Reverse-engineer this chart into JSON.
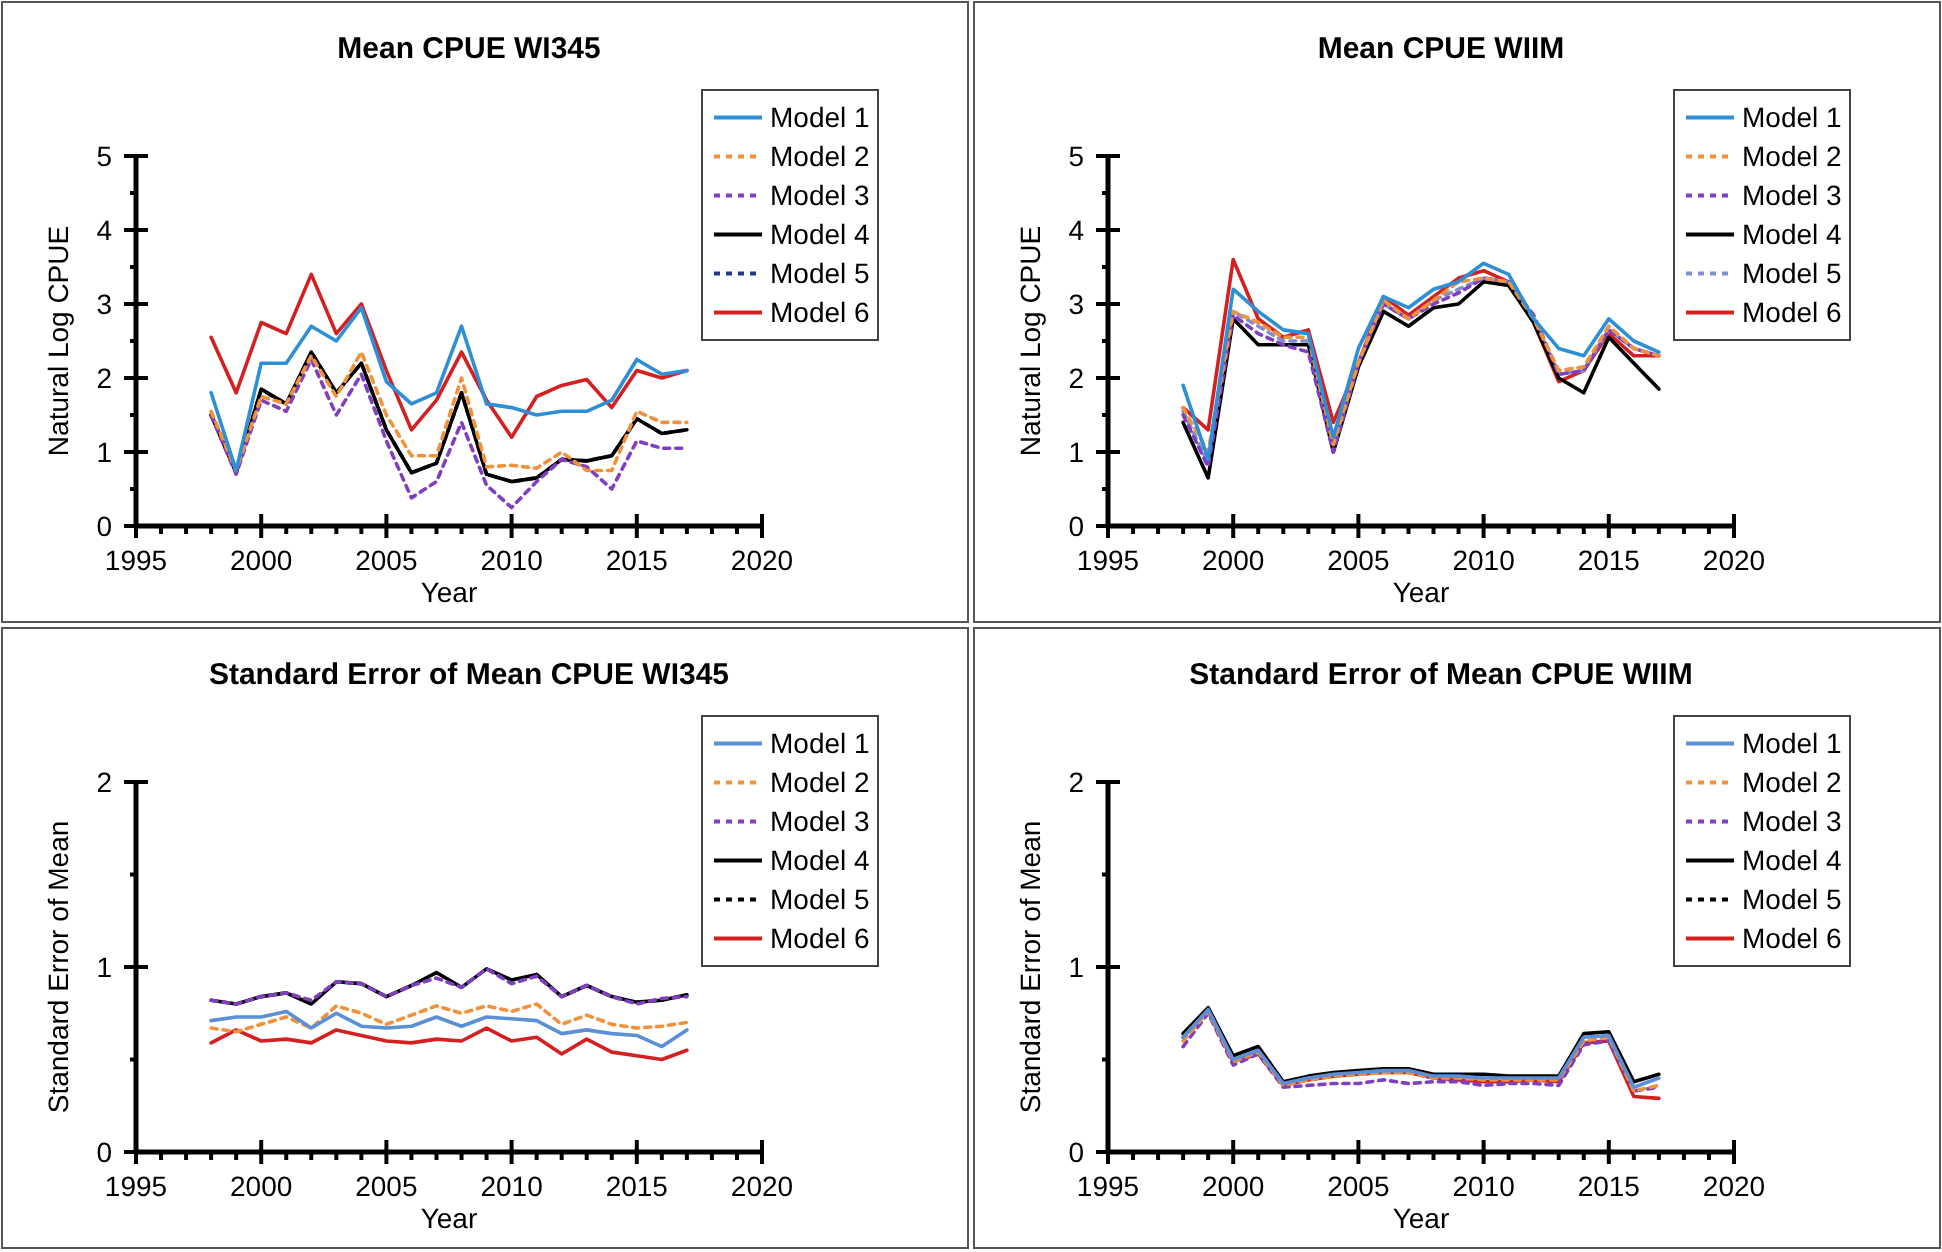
{
  "chart_data": [
    {
      "type": "line",
      "title": "Mean CPUE WI345",
      "xlabel": "Year",
      "ylabel": "Natural Log CPUE",
      "x": [
        1998,
        1999,
        2000,
        2001,
        2002,
        2003,
        2004,
        2005,
        2006,
        2007,
        2008,
        2009,
        2010,
        2011,
        2012,
        2013,
        2014,
        2015,
        2016,
        2017
      ],
      "xlim": [
        1995,
        2020
      ],
      "xticks": [
        1995,
        {
          "value": 1996,
          "label": null
        },
        {
          "value": 1997,
          "label": null
        },
        {
          "value": 1998,
          "label": null
        },
        {
          "value": 1999,
          "label": null
        },
        2000,
        {
          "value": 2001,
          "label": null
        },
        {
          "value": 2002,
          "label": null
        },
        {
          "value": 2003,
          "label": null
        },
        {
          "value": 2004,
          "label": null
        },
        2005,
        {
          "value": 2006,
          "label": null
        },
        {
          "value": 2007,
          "label": null
        },
        {
          "value": 2008,
          "label": null
        },
        {
          "value": 2009,
          "label": null
        },
        2010,
        {
          "value": 2011,
          "label": null
        },
        {
          "value": 2012,
          "label": null
        },
        {
          "value": 2013,
          "label": null
        },
        {
          "value": 2014,
          "label": null
        },
        2015,
        {
          "value": 2016,
          "label": null
        },
        {
          "value": 2017,
          "label": null
        },
        {
          "value": 2018,
          "label": null
        },
        {
          "value": 2019,
          "label": null
        },
        2020
      ],
      "ylim": [
        0,
        5
      ],
      "yticks": [
        0,
        {
          "value": 0.5,
          "label": null
        },
        1,
        {
          "value": 1.5,
          "label": null
        },
        2,
        {
          "value": 2.5,
          "label": null
        },
        3,
        {
          "value": 3.5,
          "label": null
        },
        4,
        {
          "value": 4.5,
          "label": null
        },
        5
      ],
      "grid": false,
      "legend": "top right",
      "marker": "none",
      "series": [
        {
          "name": "Model 1",
          "color": "#2e8fd6",
          "line_style": "solid",
          "values": [
            1.8,
            0.75,
            2.2,
            2.2,
            2.7,
            2.5,
            2.95,
            1.95,
            1.65,
            1.8,
            2.7,
            1.65,
            1.6,
            1.5,
            1.55,
            1.55,
            1.7,
            2.25,
            2.05,
            2.1
          ]
        },
        {
          "name": "Model 2",
          "color": "#f0923c",
          "line_style": "dashed",
          "values": [
            1.55,
            0.75,
            1.75,
            1.65,
            2.3,
            1.75,
            2.35,
            1.5,
            0.95,
            0.95,
            2.0,
            0.8,
            0.82,
            0.78,
            1.0,
            0.75,
            0.75,
            1.55,
            1.4,
            1.4
          ]
        },
        {
          "name": "Model 3",
          "color": "#7f3fbf",
          "line_style": "dashed",
          "values": [
            1.5,
            0.7,
            1.7,
            1.55,
            2.25,
            1.5,
            2.05,
            1.15,
            0.38,
            0.6,
            1.4,
            0.55,
            0.25,
            0.6,
            0.9,
            0.8,
            0.5,
            1.15,
            1.05,
            1.05
          ]
        },
        {
          "name": "Model 4",
          "color": "#000000",
          "line_style": "solid",
          "values": [
            1.5,
            0.72,
            1.85,
            1.65,
            2.35,
            1.8,
            2.2,
            1.3,
            0.72,
            0.85,
            1.8,
            0.7,
            0.6,
            0.65,
            0.9,
            0.88,
            0.95,
            1.45,
            1.25,
            1.3
          ]
        },
        {
          "name": "Model 5",
          "color": "#1f3a8c",
          "line_style": "dashed",
          "values": [
            1.5,
            0.72,
            1.84,
            1.65,
            2.35,
            1.8,
            2.2,
            1.3,
            0.72,
            0.85,
            1.8,
            0.7,
            0.6,
            0.65,
            0.9,
            0.88,
            0.95,
            1.45,
            1.25,
            1.3
          ]
        },
        {
          "name": "Model 6",
          "color": "#d42020",
          "line_style": "solid",
          "values": [
            2.55,
            1.8,
            2.75,
            2.6,
            3.4,
            2.6,
            3.0,
            2.1,
            1.3,
            1.7,
            2.35,
            1.7,
            1.2,
            1.75,
            1.9,
            1.98,
            1.6,
            2.1,
            2.0,
            2.1
          ]
        }
      ]
    },
    {
      "type": "line",
      "title": "Mean CPUE WIIM",
      "xlabel": "Year",
      "ylabel": "Natural Log CPUE",
      "x": [
        1998,
        1999,
        2000,
        2001,
        2002,
        2003,
        2004,
        2005,
        2006,
        2007,
        2008,
        2009,
        2010,
        2011,
        2012,
        2013,
        2014,
        2015,
        2016,
        2017
      ],
      "xlim": [
        1995,
        2020
      ],
      "xticks": [
        1995,
        {
          "value": 1996,
          "label": null
        },
        {
          "value": 1997,
          "label": null
        },
        {
          "value": 1998,
          "label": null
        },
        {
          "value": 1999,
          "label": null
        },
        2000,
        {
          "value": 2001,
          "label": null
        },
        {
          "value": 2002,
          "label": null
        },
        {
          "value": 2003,
          "label": null
        },
        {
          "value": 2004,
          "label": null
        },
        2005,
        {
          "value": 2006,
          "label": null
        },
        {
          "value": 2007,
          "label": null
        },
        {
          "value": 2008,
          "label": null
        },
        {
          "value": 2009,
          "label": null
        },
        2010,
        {
          "value": 2011,
          "label": null
        },
        {
          "value": 2012,
          "label": null
        },
        {
          "value": 2013,
          "label": null
        },
        {
          "value": 2014,
          "label": null
        },
        2015,
        {
          "value": 2016,
          "label": null
        },
        {
          "value": 2017,
          "label": null
        },
        {
          "value": 2018,
          "label": null
        },
        {
          "value": 2019,
          "label": null
        },
        2020
      ],
      "ylim": [
        0,
        5
      ],
      "yticks": [
        0,
        {
          "value": 0.5,
          "label": null
        },
        1,
        {
          "value": 1.5,
          "label": null
        },
        2,
        {
          "value": 2.5,
          "label": null
        },
        3,
        {
          "value": 3.5,
          "label": null
        },
        4,
        {
          "value": 4.5,
          "label": null
        },
        5
      ],
      "grid": false,
      "legend": "top right",
      "marker": "none",
      "series": [
        {
          "name": "Model 1",
          "color": "#2e8fd6",
          "line_style": "solid",
          "values": [
            1.9,
            0.9,
            3.2,
            2.9,
            2.65,
            2.6,
            1.2,
            2.4,
            3.1,
            2.95,
            3.2,
            3.3,
            3.55,
            3.4,
            2.8,
            2.4,
            2.3,
            2.8,
            2.5,
            2.35
          ]
        },
        {
          "name": "Model 2",
          "color": "#f0923c",
          "line_style": "dashed",
          "values": [
            1.6,
            1.0,
            2.9,
            2.75,
            2.55,
            2.55,
            1.1,
            2.2,
            3.05,
            2.8,
            3.05,
            3.3,
            3.35,
            3.3,
            2.8,
            2.1,
            2.15,
            2.7,
            2.4,
            2.3
          ]
        },
        {
          "name": "Model 3",
          "color": "#7f3fbf",
          "line_style": "dashed",
          "values": [
            1.5,
            0.8,
            2.85,
            2.6,
            2.45,
            2.35,
            1.0,
            2.2,
            3.0,
            2.8,
            3.0,
            3.15,
            3.35,
            3.3,
            2.85,
            2.05,
            2.1,
            2.65,
            2.4,
            2.3
          ]
        },
        {
          "name": "Model 4",
          "color": "#000000",
          "line_style": "solid",
          "values": [
            1.4,
            0.65,
            2.8,
            2.45,
            2.45,
            2.45,
            1.0,
            2.15,
            2.9,
            2.7,
            2.95,
            3.0,
            3.3,
            3.25,
            2.75,
            2.0,
            1.8,
            2.55,
            2.2,
            1.85
          ]
        },
        {
          "name": "Model 5",
          "color": "#7f8fd0",
          "line_style": "dashed",
          "values": [
            1.55,
            0.85,
            2.9,
            2.7,
            2.5,
            2.5,
            1.1,
            2.2,
            3.0,
            2.8,
            3.05,
            3.2,
            3.35,
            3.3,
            2.8,
            2.05,
            2.1,
            2.65,
            2.4,
            2.3
          ]
        },
        {
          "name": "Model 6",
          "color": "#d42020",
          "line_style": "solid",
          "values": [
            1.6,
            1.3,
            3.6,
            2.8,
            2.55,
            2.65,
            1.4,
            2.2,
            3.1,
            2.85,
            3.1,
            3.35,
            3.45,
            3.3,
            2.75,
            1.95,
            2.1,
            2.6,
            2.3,
            2.3
          ]
        }
      ]
    },
    {
      "type": "line",
      "title": "Standard Error of Mean CPUE WI345",
      "xlabel": "Year",
      "ylabel": "Standard Error of Mean",
      "x": [
        1998,
        1999,
        2000,
        2001,
        2002,
        2003,
        2004,
        2005,
        2006,
        2007,
        2008,
        2009,
        2010,
        2011,
        2012,
        2013,
        2014,
        2015,
        2016,
        2017
      ],
      "xlim": [
        1995,
        2020
      ],
      "xticks": [
        1995,
        {
          "value": 1996,
          "label": null
        },
        {
          "value": 1997,
          "label": null
        },
        {
          "value": 1998,
          "label": null
        },
        {
          "value": 1999,
          "label": null
        },
        2000,
        {
          "value": 2001,
          "label": null
        },
        {
          "value": 2002,
          "label": null
        },
        {
          "value": 2003,
          "label": null
        },
        {
          "value": 2004,
          "label": null
        },
        2005,
        {
          "value": 2006,
          "label": null
        },
        {
          "value": 2007,
          "label": null
        },
        {
          "value": 2008,
          "label": null
        },
        {
          "value": 2009,
          "label": null
        },
        2010,
        {
          "value": 2011,
          "label": null
        },
        {
          "value": 2012,
          "label": null
        },
        {
          "value": 2013,
          "label": null
        },
        {
          "value": 2014,
          "label": null
        },
        2015,
        {
          "value": 2016,
          "label": null
        },
        {
          "value": 2017,
          "label": null
        },
        {
          "value": 2018,
          "label": null
        },
        {
          "value": 2019,
          "label": null
        },
        2020
      ],
      "ylim": [
        0,
        2
      ],
      "yticks": [
        0,
        {
          "value": 0.5,
          "label": null
        },
        1,
        {
          "value": 1.5,
          "label": null
        },
        2
      ],
      "grid": false,
      "legend": "top right",
      "marker": "none",
      "series": [
        {
          "name": "Model 1",
          "color": "#5b8fd6",
          "line_style": "solid",
          "values": [
            0.71,
            0.73,
            0.73,
            0.76,
            0.67,
            0.75,
            0.68,
            0.67,
            0.68,
            0.73,
            0.68,
            0.73,
            0.72,
            0.71,
            0.64,
            0.66,
            0.64,
            0.63,
            0.57,
            0.66
          ]
        },
        {
          "name": "Model 2",
          "color": "#f0923c",
          "line_style": "dashed",
          "values": [
            0.67,
            0.65,
            0.69,
            0.73,
            0.67,
            0.79,
            0.75,
            0.69,
            0.74,
            0.79,
            0.75,
            0.79,
            0.76,
            0.8,
            0.69,
            0.74,
            0.69,
            0.67,
            0.68,
            0.7
          ]
        },
        {
          "name": "Model 3",
          "color": "#7f3fbf",
          "line_style": "dashed",
          "values": [
            0.82,
            0.8,
            0.84,
            0.86,
            0.82,
            0.92,
            0.91,
            0.84,
            0.9,
            0.94,
            0.89,
            0.99,
            0.91,
            0.95,
            0.84,
            0.9,
            0.84,
            0.8,
            0.83,
            0.84
          ]
        },
        {
          "name": "Model 4",
          "color": "#000000",
          "line_style": "solid",
          "values": [
            0.82,
            0.8,
            0.84,
            0.86,
            0.8,
            0.92,
            0.91,
            0.84,
            0.9,
            0.97,
            0.89,
            0.99,
            0.93,
            0.96,
            0.84,
            0.9,
            0.84,
            0.81,
            0.82,
            0.85
          ]
        },
        {
          "name": "Model 5",
          "color": "#000000",
          "line_style": "dashed",
          "values": [
            null,
            null,
            null,
            null,
            null,
            null,
            null,
            null,
            null,
            null,
            null,
            null,
            null,
            null,
            null,
            null,
            null,
            null,
            null,
            null
          ]
        },
        {
          "name": "Model 6",
          "color": "#d42020",
          "line_style": "solid",
          "values": [
            0.59,
            0.66,
            0.6,
            0.61,
            0.59,
            0.66,
            0.63,
            0.6,
            0.59,
            0.61,
            0.6,
            0.67,
            0.6,
            0.62,
            0.53,
            0.61,
            0.54,
            0.52,
            0.5,
            0.55
          ]
        }
      ]
    },
    {
      "type": "line",
      "title": "Standard Error of Mean CPUE WIIM",
      "xlabel": "Year",
      "ylabel": "Standard Error of Mean",
      "x": [
        1998,
        1999,
        2000,
        2001,
        2002,
        2003,
        2004,
        2005,
        2006,
        2007,
        2008,
        2009,
        2010,
        2011,
        2012,
        2013,
        2014,
        2015,
        2016,
        2017
      ],
      "xlim": [
        1995,
        2020
      ],
      "xticks": [
        1995,
        {
          "value": 1996,
          "label": null
        },
        {
          "value": 1997,
          "label": null
        },
        {
          "value": 1998,
          "label": null
        },
        {
          "value": 1999,
          "label": null
        },
        2000,
        {
          "value": 2001,
          "label": null
        },
        {
          "value": 2002,
          "label": null
        },
        {
          "value": 2003,
          "label": null
        },
        {
          "value": 2004,
          "label": null
        },
        2005,
        {
          "value": 2006,
          "label": null
        },
        {
          "value": 2007,
          "label": null
        },
        {
          "value": 2008,
          "label": null
        },
        {
          "value": 2009,
          "label": null
        },
        2010,
        {
          "value": 2011,
          "label": null
        },
        {
          "value": 2012,
          "label": null
        },
        {
          "value": 2013,
          "label": null
        },
        {
          "value": 2014,
          "label": null
        },
        2015,
        {
          "value": 2016,
          "label": null
        },
        {
          "value": 2017,
          "label": null
        },
        {
          "value": 2018,
          "label": null
        },
        {
          "value": 2019,
          "label": null
        },
        2020
      ],
      "ylim": [
        0,
        2
      ],
      "yticks": [
        0,
        {
          "value": 0.5,
          "label": null
        },
        1,
        {
          "value": 1.5,
          "label": null
        },
        2
      ],
      "grid": false,
      "legend": "top right",
      "marker": "none",
      "series": [
        {
          "name": "Model 1",
          "color": "#5b8fd6",
          "line_style": "solid",
          "values": [
            0.62,
            0.77,
            0.5,
            0.55,
            0.37,
            0.4,
            0.42,
            0.43,
            0.44,
            0.44,
            0.41,
            0.41,
            0.4,
            0.4,
            0.4,
            0.4,
            0.62,
            0.63,
            0.35,
            0.4
          ]
        },
        {
          "name": "Model 2",
          "color": "#f0923c",
          "line_style": "dashed",
          "values": [
            0.6,
            0.76,
            0.49,
            0.54,
            0.36,
            0.39,
            0.41,
            0.42,
            0.43,
            0.43,
            0.4,
            0.4,
            0.39,
            0.39,
            0.39,
            0.39,
            0.6,
            0.62,
            0.33,
            0.36
          ]
        },
        {
          "name": "Model 3",
          "color": "#7f3fbf",
          "line_style": "dashed",
          "values": [
            0.57,
            0.75,
            0.47,
            0.53,
            0.35,
            0.36,
            0.37,
            0.37,
            0.39,
            0.37,
            0.38,
            0.38,
            0.36,
            0.37,
            0.37,
            0.36,
            0.58,
            0.6,
            0.33,
            0.35
          ]
        },
        {
          "name": "Model 4",
          "color": "#000000",
          "line_style": "solid",
          "values": [
            0.64,
            0.78,
            0.52,
            0.57,
            0.38,
            0.41,
            0.43,
            0.44,
            0.45,
            0.45,
            0.42,
            0.42,
            0.42,
            0.41,
            0.41,
            0.41,
            0.64,
            0.65,
            0.38,
            0.42
          ]
        },
        {
          "name": "Model 5",
          "color": "#000000",
          "line_style": "dashed",
          "values": [
            null,
            null,
            null,
            null,
            null,
            null,
            null,
            null,
            null,
            null,
            null,
            null,
            null,
            null,
            null,
            null,
            null,
            null,
            null,
            null
          ]
        },
        {
          "name": "Model 6",
          "color": "#d42020",
          "line_style": "solid",
          "values": [
            0.62,
            0.76,
            0.49,
            0.53,
            0.36,
            0.39,
            0.41,
            0.42,
            0.43,
            0.43,
            0.4,
            0.39,
            0.38,
            0.38,
            0.39,
            0.38,
            0.59,
            0.6,
            0.3,
            0.29
          ]
        }
      ]
    }
  ]
}
